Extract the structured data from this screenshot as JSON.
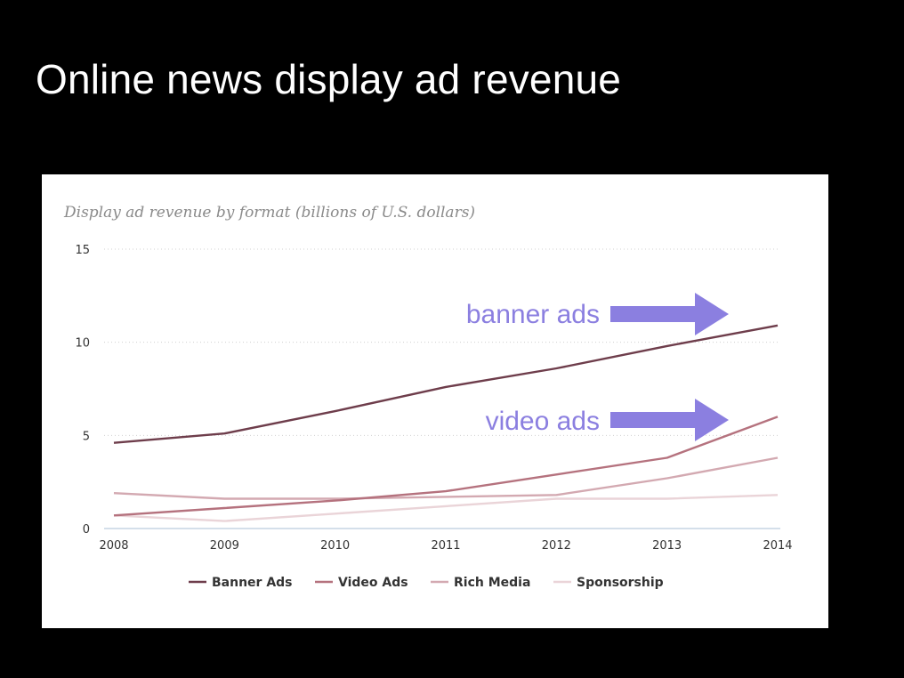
{
  "slide": {
    "title": "Online news display ad revenue"
  },
  "chart_data": {
    "type": "line",
    "title": "Display ad revenue by format (billions of U.S. dollars)",
    "xlabel": "",
    "ylabel": "",
    "x": [
      "2008",
      "2009",
      "2010",
      "2011",
      "2012",
      "2013",
      "2014"
    ],
    "ylim": [
      0,
      15
    ],
    "yticks": [
      0,
      5,
      10,
      15
    ],
    "grid": true,
    "legend_position": "bottom",
    "series": [
      {
        "name": "Banner Ads",
        "color": "#6e3d4b",
        "values": [
          4.6,
          5.1,
          6.3,
          7.6,
          8.6,
          9.8,
          10.9
        ]
      },
      {
        "name": "Video Ads",
        "color": "#b5727e",
        "values": [
          0.7,
          1.1,
          1.5,
          2.0,
          2.9,
          3.8,
          6.0
        ]
      },
      {
        "name": "Rich Media",
        "color": "#d3a9b1",
        "values": [
          1.9,
          1.6,
          1.6,
          1.7,
          1.8,
          2.7,
          3.8
        ]
      },
      {
        "name": "Sponsorship",
        "color": "#ead4d8",
        "values": [
          0.7,
          0.4,
          0.8,
          1.2,
          1.6,
          1.6,
          1.8
        ]
      }
    ],
    "annotations": [
      {
        "text": "banner ads",
        "points_to": "Banner Ads",
        "color": "#8b7fe0"
      },
      {
        "text": "video ads",
        "points_to": "Video Ads",
        "color": "#8b7fe0"
      }
    ]
  }
}
